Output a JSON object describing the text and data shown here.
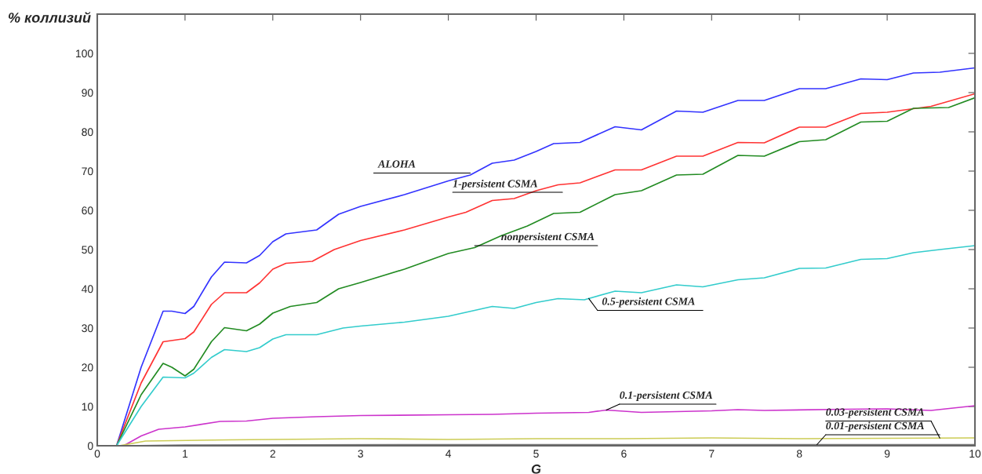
{
  "chart_data": {
    "type": "line",
    "ylabel": "% коллизий",
    "xlabel": "G",
    "xlim": [
      0,
      10
    ],
    "ylim": [
      0,
      110
    ],
    "xticks": [
      0,
      1,
      2,
      3,
      4,
      5,
      6,
      7,
      8,
      9,
      10
    ],
    "yticks": [
      0,
      10,
      20,
      30,
      40,
      50,
      60,
      70,
      80,
      90,
      100
    ],
    "grid": false,
    "legend": false,
    "marker": "none",
    "line_style": "solid",
    "series": [
      {
        "name": "ALOHA",
        "color": "#3333ff",
        "x": [
          0.22,
          0.5,
          0.75,
          0.85,
          1.0,
          1.1,
          1.3,
          1.45,
          1.7,
          1.85,
          2.0,
          2.15,
          2.5,
          2.75,
          3.0,
          3.5,
          4.0,
          4.25,
          4.5,
          4.75,
          5.0,
          5.2,
          5.5,
          5.9,
          6.2,
          6.6,
          6.9,
          7.3,
          7.6,
          8.0,
          8.3,
          8.7,
          9.0,
          9.3,
          9.6,
          10.0
        ],
        "values": [
          0,
          20,
          34.3,
          34.3,
          33.7,
          35.5,
          43,
          46.8,
          46.6,
          48.5,
          52,
          54,
          55,
          59,
          61,
          64,
          67.5,
          69,
          72,
          72.8,
          75,
          77,
          77.3,
          81.3,
          80.5,
          85.3,
          85,
          88,
          88,
          91,
          91,
          93.5,
          93.3,
          95,
          95.2,
          96.3
        ]
      },
      {
        "name": "1-persistent CSMA",
        "color": "#ff3333",
        "x": [
          0.22,
          0.5,
          0.75,
          1.0,
          1.1,
          1.3,
          1.45,
          1.7,
          1.85,
          2.0,
          2.15,
          2.45,
          2.7,
          3.0,
          3.5,
          4.0,
          4.2,
          4.5,
          4.75,
          5.0,
          5.25,
          5.5,
          5.9,
          6.2,
          6.6,
          6.9,
          7.3,
          7.6,
          8.0,
          8.3,
          8.7,
          9.0,
          9.5,
          10.0
        ],
        "values": [
          0,
          16,
          26.5,
          27.3,
          29,
          36,
          39,
          39,
          41.5,
          45,
          46.5,
          47,
          50,
          52.3,
          55,
          58.3,
          59.5,
          62.5,
          63,
          65,
          66.5,
          67,
          70.3,
          70.3,
          73.8,
          73.8,
          77.3,
          77.2,
          81.2,
          81.2,
          84.7,
          85,
          86.5,
          89.7
        ]
      },
      {
        "name": "nonpersistent CSMA",
        "color": "#228b22",
        "x": [
          0.22,
          0.5,
          0.75,
          0.85,
          1.0,
          1.1,
          1.3,
          1.45,
          1.7,
          1.85,
          2.0,
          2.2,
          2.5,
          2.75,
          3.0,
          3.5,
          4.0,
          4.3,
          4.6,
          4.9,
          5.2,
          5.5,
          5.9,
          6.2,
          6.6,
          6.9,
          7.3,
          7.6,
          8.0,
          8.3,
          8.7,
          9.0,
          9.3,
          9.7,
          10.0
        ],
        "values": [
          0,
          13,
          21,
          20,
          17.8,
          19.5,
          26.5,
          30.1,
          29.3,
          31,
          33.8,
          35.5,
          36.5,
          40,
          41.6,
          45,
          49,
          50.5,
          53.5,
          56,
          59.2,
          59.5,
          64,
          65,
          69,
          69.2,
          74,
          73.8,
          77.5,
          78,
          82.5,
          82.7,
          86,
          86.2,
          88.7
        ]
      },
      {
        "name": "0.5-persistent CSMA",
        "color": "#33cccc",
        "x": [
          0.22,
          0.5,
          0.75,
          1.0,
          1.1,
          1.3,
          1.45,
          1.7,
          1.85,
          2.0,
          2.15,
          2.5,
          2.8,
          3.0,
          3.5,
          4.0,
          4.2,
          4.5,
          4.75,
          5.0,
          5.25,
          5.55,
          5.9,
          6.2,
          6.6,
          6.9,
          7.3,
          7.6,
          8.0,
          8.3,
          8.7,
          9.0,
          9.3,
          9.6,
          10.0
        ],
        "values": [
          0,
          10,
          17.5,
          17.3,
          18.5,
          22.5,
          24.5,
          24,
          25,
          27.2,
          28.3,
          28.3,
          30,
          30.5,
          31.5,
          33,
          34,
          35.5,
          35,
          36.5,
          37.5,
          37.2,
          39.4,
          39,
          41,
          40.5,
          42.3,
          42.8,
          45.2,
          45.3,
          47.5,
          47.7,
          49.2,
          50,
          51
        ]
      },
      {
        "name": "0.1-persistent CSMA",
        "color": "#cc33cc",
        "x": [
          0.3,
          0.5,
          0.7,
          1.0,
          1.4,
          1.7,
          2.0,
          2.5,
          3.0,
          4.0,
          4.5,
          5.0,
          5.6,
          5.8,
          6.2,
          7.0,
          7.3,
          7.6,
          8.5,
          9.0,
          9.5,
          10.0
        ],
        "values": [
          0,
          2.5,
          4.2,
          4.8,
          6.2,
          6.3,
          7,
          7.4,
          7.7,
          7.9,
          8,
          8.3,
          8.5,
          9.1,
          8.5,
          8.9,
          9.2,
          9,
          9.3,
          9.4,
          9,
          10.2
        ]
      },
      {
        "name": "0.03-persistent CSMA",
        "color": "#cccc55",
        "x": [
          0.25,
          0.55,
          1.5,
          2.0,
          3.0,
          4.0,
          5.0,
          6.0,
          7.0,
          8.0,
          10.0
        ],
        "values": [
          0,
          1.2,
          1.5,
          1.6,
          1.8,
          1.6,
          1.8,
          1.8,
          2.0,
          1.8,
          2.0
        ]
      },
      {
        "name": "0.01-persistent CSMA",
        "color": "#777777",
        "x": [
          0.3,
          1.0,
          5.0,
          10.0
        ],
        "values": [
          0,
          0.2,
          0.3,
          0.3
        ]
      }
    ]
  }
}
